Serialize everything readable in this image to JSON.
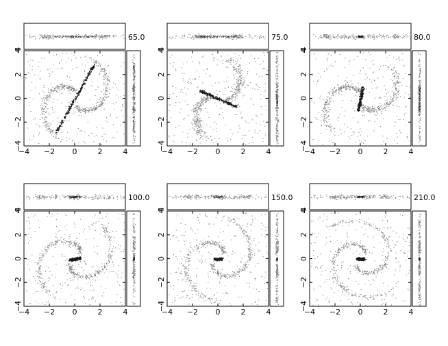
{
  "chart_data": {
    "type": "scatter",
    "grid": false,
    "panels": [
      {
        "label": "65.0",
        "xlim": [
          -4,
          4
        ],
        "ylim": [
          -4,
          4
        ],
        "xticks": [
          "−4",
          "−2",
          "0",
          "2",
          "4"
        ],
        "yticks": [
          "−4",
          "−2",
          "0",
          "2",
          "4"
        ],
        "side_tick": "4",
        "morphology": "bar",
        "bar_angle_deg": 62,
        "bar_length": 3.2,
        "arm_winding": 0.9,
        "seed": 11
      },
      {
        "label": "75.0",
        "xlim": [
          -4,
          4
        ],
        "ylim": [
          -4,
          4
        ],
        "xticks": [
          "−4",
          "−2",
          "0",
          "2",
          "4"
        ],
        "yticks": [
          "−4",
          "−2",
          "0",
          "2",
          "4"
        ],
        "side_tick": "4",
        "morphology": "bar",
        "bar_angle_deg": -25,
        "bar_length": 1.6,
        "arm_winding": 0.5,
        "seed": 23
      },
      {
        "label": "80.0",
        "xlim": [
          -4,
          4
        ],
        "ylim": [
          -4,
          4
        ],
        "xticks": [
          "−4",
          "−2",
          "0",
          "2",
          "4"
        ],
        "yticks": [
          "−4",
          "−2",
          "0",
          "2",
          "4"
        ],
        "side_tick": "4",
        "morphology": "bar",
        "bar_angle_deg": 80,
        "bar_length": 1.0,
        "arm_winding": 0.7,
        "seed": 37
      },
      {
        "label": "100.0",
        "xlim": [
          -4,
          4
        ],
        "ylim": [
          -4,
          4
        ],
        "xticks": [
          "−4",
          "−2",
          "0",
          "2",
          "4"
        ],
        "yticks": [
          "−4",
          "−2",
          "0",
          "2",
          "4"
        ],
        "side_tick": "4",
        "morphology": "core",
        "bar_angle_deg": 10,
        "bar_length": 0.4,
        "arm_winding": 1.1,
        "seed": 41
      },
      {
        "label": "150.0",
        "xlim": [
          -4,
          4
        ],
        "ylim": [
          -4,
          4
        ],
        "xticks": [
          "−4",
          "−2",
          "0",
          "2",
          "4"
        ],
        "yticks": [
          "−4",
          "−2",
          "0",
          "2",
          "4"
        ],
        "side_tick": "4",
        "morphology": "core",
        "bar_angle_deg": 0,
        "bar_length": 0.3,
        "arm_winding": 1.3,
        "seed": 53
      },
      {
        "label": "210.0",
        "xlim": [
          -4,
          4
        ],
        "ylim": [
          -4,
          4
        ],
        "xticks": [
          "−4",
          "−2",
          "0",
          "2",
          "4"
        ],
        "yticks": [
          "−4",
          "−2",
          "0",
          "2",
          "4"
        ],
        "side_tick": "4",
        "morphology": "core",
        "bar_angle_deg": 0,
        "bar_length": 0.3,
        "arm_winding": 1.5,
        "seed": 67
      }
    ]
  }
}
